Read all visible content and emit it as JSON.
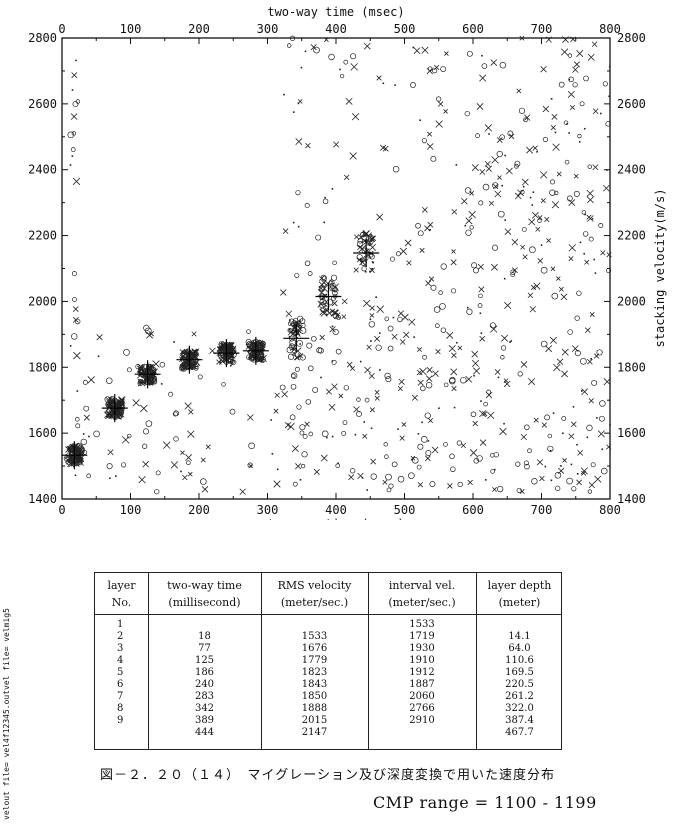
{
  "chart_data": {
    "type": "scatter",
    "xlabel": "two-way time (msec)",
    "ylabel": "stacking velocity(m/s)",
    "xlim": [
      0,
      800
    ],
    "ylim": [
      1400,
      2800
    ],
    "x_ticks": [
      "0",
      "100",
      "200",
      "300",
      "400",
      "500",
      "600",
      "700",
      "800"
    ],
    "y_ticks": [
      "1400",
      "1600",
      "1800",
      "2000",
      "2200",
      "2400",
      "2600",
      "2800"
    ],
    "picked_velocities": [
      {
        "t": 18,
        "v": 1533
      },
      {
        "t": 77,
        "v": 1676
      },
      {
        "t": 125,
        "v": 1779
      },
      {
        "t": 186,
        "v": 1823
      },
      {
        "t": 240,
        "v": 1843
      },
      {
        "t": 283,
        "v": 1850
      },
      {
        "t": 342,
        "v": 1888
      },
      {
        "t": 389,
        "v": 2015
      },
      {
        "t": 444,
        "v": 2147
      }
    ]
  },
  "table": {
    "headers": [
      [
        "layer",
        "No."
      ],
      [
        "two-way time",
        "(millisecond)"
      ],
      [
        "RMS velocity",
        "(meter/sec.)"
      ],
      [
        "interval vel.",
        "(meter/sec.)"
      ],
      [
        "layer depth",
        "(meter)"
      ]
    ],
    "layer_no": [
      "1",
      "2",
      "3",
      "4",
      "5",
      "6",
      "7",
      "8",
      "9"
    ],
    "two_way_time": [
      "18",
      "77",
      "125",
      "186",
      "240",
      "283",
      "342",
      "389",
      "444"
    ],
    "rms_velocity": [
      "1533",
      "1676",
      "1779",
      "1823",
      "1843",
      "1850",
      "1888",
      "2015",
      "2147"
    ],
    "interval_vel": [
      "1533",
      "1719",
      "1930",
      "1910",
      "1912",
      "1887",
      "2060",
      "2766",
      "2910"
    ],
    "layer_depth": [
      "14.1",
      "64.0",
      "110.6",
      "169.5",
      "220.5",
      "261.2",
      "322.0",
      "387.4",
      "467.7"
    ]
  },
  "caption": "図－２．２０（１４）　マイグレーション及び深度変換で用いた速度分布",
  "cmp_range": "CMP range = 1100 - 1199",
  "side_note": "velout file= vel4f12345.outvel file= velmig5"
}
